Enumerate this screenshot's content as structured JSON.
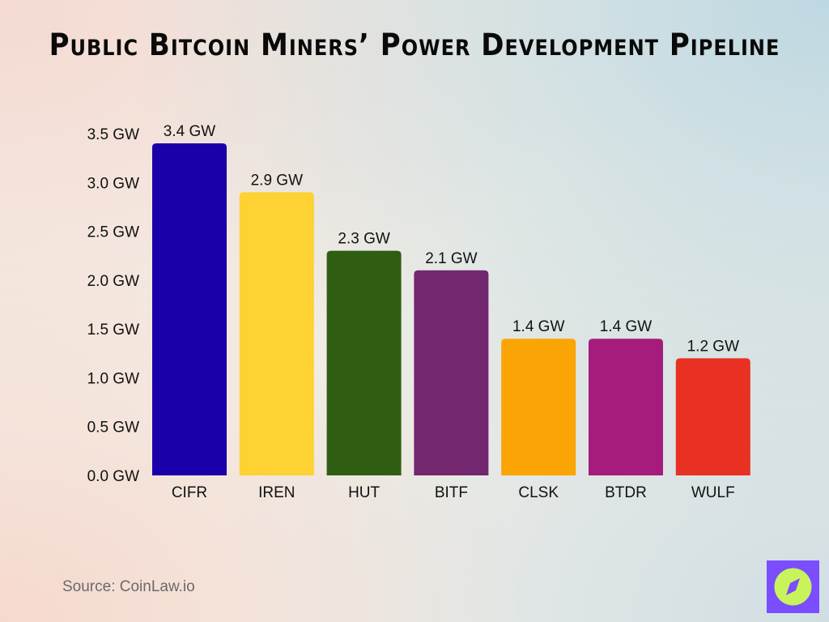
{
  "chart_data": {
    "type": "bar",
    "title": "Public Bitcoin Miners’ Power Development Pipeline",
    "categories": [
      "CIFR",
      "IREN",
      "HUT",
      "BITF",
      "CLSK",
      "BTDR",
      "WULF"
    ],
    "values": [
      3.4,
      2.9,
      2.3,
      2.1,
      1.4,
      1.4,
      1.2
    ],
    "data_labels": [
      "3.4 GW",
      "2.9 GW",
      "2.3 GW",
      "2.1 GW",
      "1.4 GW",
      "1.4 GW",
      "1.2 GW"
    ],
    "colors": [
      "#1a00a8",
      "#fdd232",
      "#2f5e12",
      "#72276e",
      "#fba405",
      "#a51c7c",
      "#e83122"
    ],
    "ylim": [
      0,
      3.5
    ],
    "yticks": [
      0,
      0.5,
      1.0,
      1.5,
      2.0,
      2.5,
      3.0,
      3.5
    ],
    "ytick_labels": [
      "0.0 GW",
      "0.5 GW",
      "1.0 GW",
      "1.5 GW",
      "2.0 GW",
      "2.5 GW",
      "3.0 GW",
      "3.5 GW"
    ],
    "xlabel": "",
    "ylabel": "",
    "grid": false,
    "legend": "none"
  },
  "source": "Source: CoinLaw.io",
  "logo": {
    "icon": "compass-icon",
    "bg_color": "#7a4dff",
    "fg_color": "#c9f35b"
  }
}
